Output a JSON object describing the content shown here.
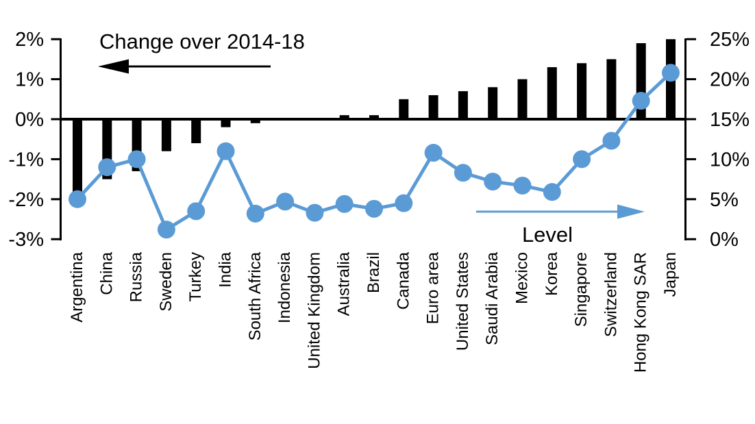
{
  "chart_data": {
    "type": "combo_bar_line",
    "title": "",
    "categories": [
      "Argentina",
      "China",
      "Russia",
      "Sweden",
      "Turkey",
      "India",
      "South Africa",
      "Indonesia",
      "United Kingdom",
      "Australia",
      "Brazil",
      "Canada",
      "Euro area",
      "United States",
      "Saudi Arabia",
      "Mexico",
      "Korea",
      "Singapore",
      "Switzerland",
      "Hong Kong SAR",
      "Japan"
    ],
    "series": [
      {
        "name": "Change over 2014-18",
        "type": "bar",
        "axis": "left",
        "unit": "%",
        "color": "#000000",
        "values": [
          -2.0,
          -1.5,
          -1.3,
          -0.8,
          -0.6,
          -0.2,
          -0.1,
          0.0,
          0.0,
          0.1,
          0.1,
          0.5,
          0.6,
          0.7,
          0.8,
          1.0,
          1.3,
          1.4,
          1.5,
          1.9,
          2.0
        ]
      },
      {
        "name": "Level",
        "type": "line",
        "axis": "right",
        "unit": "%",
        "color": "#5B9BD5",
        "values": [
          5.0,
          9.0,
          10.0,
          1.2,
          3.5,
          11.0,
          3.2,
          4.7,
          3.3,
          4.4,
          3.8,
          4.5,
          10.8,
          8.3,
          7.2,
          6.7,
          5.9,
          10.0,
          12.3,
          17.3,
          20.8
        ]
      }
    ],
    "left_axis": {
      "min": -3,
      "max": 2,
      "tick_step": 1,
      "tick_labels": [
        "2%",
        "1%",
        "0%",
        "-1%",
        "-2%",
        "-3%"
      ]
    },
    "right_axis": {
      "min": 0,
      "max": 25,
      "tick_step": 5,
      "tick_labels": [
        "25%",
        "20%",
        "15%",
        "10%",
        "5%",
        "0%"
      ]
    },
    "annotations": {
      "bar_series_label": "Change over 2014-18",
      "line_series_label": "Level",
      "bar_arrow_direction": "left",
      "line_arrow_direction": "right"
    },
    "grid": "off",
    "legend": "none",
    "colors": {
      "bar": "#000000",
      "line": "#5B9BD5"
    }
  }
}
